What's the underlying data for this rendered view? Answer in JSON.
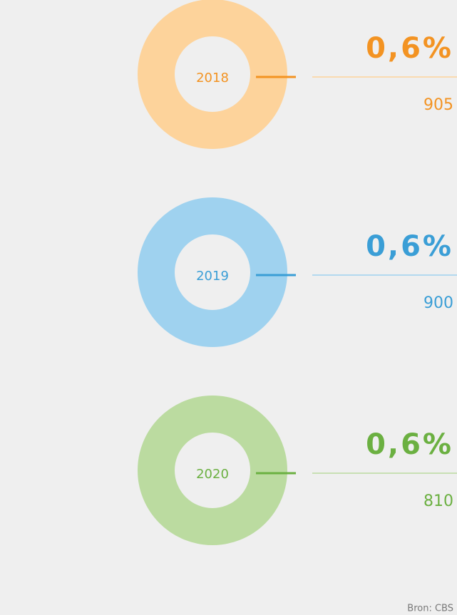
{
  "items": [
    {
      "year": "2018",
      "percent": "0,6%",
      "count": "905",
      "ring_color": "#fdd39b",
      "color": "#f39322"
    },
    {
      "year": "2019",
      "percent": "0,6%",
      "count": "900",
      "ring_color": "#9fd2ef",
      "color": "#3a9ed6"
    },
    {
      "year": "2020",
      "percent": "0,6%",
      "count": "810",
      "ring_color": "#bbdba0",
      "color": "#6bb041"
    }
  ],
  "source": "Bron: CBS"
}
